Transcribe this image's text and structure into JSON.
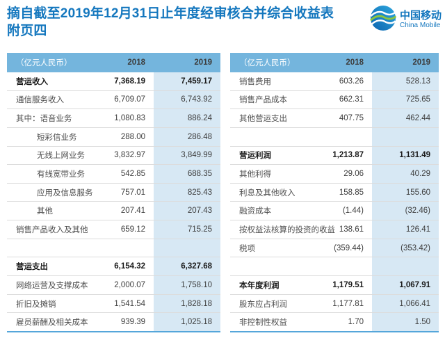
{
  "header": {
    "title_line1": "摘自截至2019年12月31日止年度经审核合并综合收益表",
    "title_line2": "附页四"
  },
  "logo": {
    "cn": "中国移动",
    "en": "China Mobile"
  },
  "colors": {
    "title_blue": "#1477BE",
    "header_bg": "#74B5DD",
    "col2019_bg": "#D7E8F4",
    "bottom_line": "#55A6DA",
    "logo_blue": "#1078BC",
    "logo_green": "#8CC540"
  },
  "tables": [
    {
      "columns": {
        "unit": "（亿元人民币）",
        "y2018": "2018",
        "y2019": "2019"
      },
      "rows": [
        {
          "label": "营运收入",
          "v2018": "7,368.19",
          "v2019": "7,459.17",
          "bold": true
        },
        {
          "label": "通信服务收入",
          "v2018": "6,709.07",
          "v2019": "6,743.92"
        },
        {
          "label": "其中：语音业务",
          "v2018": "1,080.83",
          "v2019": "886.24"
        },
        {
          "label": "短彩信业务",
          "v2018": "288.00",
          "v2019": "286.48",
          "indent": true
        },
        {
          "label": "无线上网业务",
          "v2018": "3,832.97",
          "v2019": "3,849.99",
          "indent": true
        },
        {
          "label": "有线宽带业务",
          "v2018": "542.85",
          "v2019": "688.35",
          "indent": true
        },
        {
          "label": "应用及信息服务",
          "v2018": "757.01",
          "v2019": "825.43",
          "indent": true
        },
        {
          "label": "其他",
          "v2018": "207.41",
          "v2019": "207.43",
          "indent": true
        },
        {
          "label": "销售产品收入及其他",
          "v2018": "659.12",
          "v2019": "715.25"
        },
        {
          "spacer": true
        },
        {
          "label": "营运支出",
          "v2018": "6,154.32",
          "v2019": "6,327.68",
          "bold": true
        },
        {
          "label": "网络运营及支撑成本",
          "v2018": "2,000.07",
          "v2019": "1,758.10"
        },
        {
          "label": "折旧及摊销",
          "v2018": "1,541.54",
          "v2019": "1,828.18"
        },
        {
          "label": "雇员薪酬及相关成本",
          "v2018": "939.39",
          "v2019": "1,025.18"
        }
      ]
    },
    {
      "columns": {
        "unit": "（亿元人民币）",
        "y2018": "2018",
        "y2019": "2019"
      },
      "rows": [
        {
          "label": "销售费用",
          "v2018": "603.26",
          "v2019": "528.13"
        },
        {
          "label": "销售产品成本",
          "v2018": "662.31",
          "v2019": "725.65"
        },
        {
          "label": "其他营运支出",
          "v2018": "407.75",
          "v2019": "462.44"
        },
        {
          "spacer": true
        },
        {
          "label": "营运利润",
          "v2018": "1,213.87",
          "v2019": "1,131.49",
          "bold": true
        },
        {
          "label": "其他利得",
          "v2018": "29.06",
          "v2019": "40.29"
        },
        {
          "label": "利息及其他收入",
          "v2018": "158.85",
          "v2019": "155.60"
        },
        {
          "label": "融资成本",
          "v2018": "(1.44)",
          "v2019": "(32.46)"
        },
        {
          "label": "按权益法核算的投资的收益",
          "v2018": "138.61",
          "v2019": "126.41"
        },
        {
          "label": "税项",
          "v2018": "(359.44)",
          "v2019": "(353.42)"
        },
        {
          "spacer": true
        },
        {
          "label": "本年度利润",
          "v2018": "1,179.51",
          "v2019": "1,067.91",
          "bold": true
        },
        {
          "label": "股东应占利润",
          "v2018": "1,177.81",
          "v2019": "1,066.41"
        },
        {
          "label": "非控制性权益",
          "v2018": "1.70",
          "v2019": "1.50"
        }
      ]
    }
  ]
}
